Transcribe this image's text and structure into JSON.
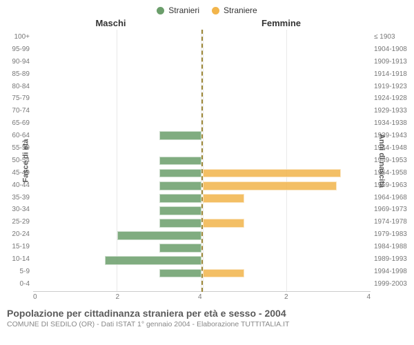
{
  "legend": {
    "male": {
      "label": "Stranieri",
      "color": "#6b9e6b"
    },
    "female": {
      "label": "Straniere",
      "color": "#f2b54b"
    }
  },
  "headers": {
    "left": "Maschi",
    "right": "Femmine"
  },
  "axis_titles": {
    "left": "Fasce di età",
    "right": "Anni di nascita"
  },
  "chart": {
    "type": "bar",
    "xmax": 4,
    "xticks": [
      0,
      2,
      4
    ],
    "background_color": "#ffffff",
    "grid_color": "#e9e9e9",
    "center_line_color": "#a08a3a",
    "bar_opacity": 0.85,
    "bar_fill_ratio": 0.7,
    "rows": [
      {
        "age": "100+",
        "birth": "≤ 1903",
        "m": 0,
        "f": 0
      },
      {
        "age": "95-99",
        "birth": "1904-1908",
        "m": 0,
        "f": 0
      },
      {
        "age": "90-94",
        "birth": "1909-1913",
        "m": 0,
        "f": 0
      },
      {
        "age": "85-89",
        "birth": "1914-1918",
        "m": 0,
        "f": 0
      },
      {
        "age": "80-84",
        "birth": "1919-1923",
        "m": 0,
        "f": 0
      },
      {
        "age": "75-79",
        "birth": "1924-1928",
        "m": 0,
        "f": 0
      },
      {
        "age": "70-74",
        "birth": "1929-1933",
        "m": 0,
        "f": 0
      },
      {
        "age": "65-69",
        "birth": "1934-1938",
        "m": 0,
        "f": 0
      },
      {
        "age": "60-64",
        "birth": "1939-1943",
        "m": 1,
        "f": 0
      },
      {
        "age": "55-59",
        "birth": "1944-1948",
        "m": 0,
        "f": 0
      },
      {
        "age": "50-54",
        "birth": "1949-1953",
        "m": 1,
        "f": 0
      },
      {
        "age": "45-49",
        "birth": "1954-1958",
        "m": 1,
        "f": 3.3
      },
      {
        "age": "40-44",
        "birth": "1959-1963",
        "m": 1,
        "f": 3.2
      },
      {
        "age": "35-39",
        "birth": "1964-1968",
        "m": 1,
        "f": 1
      },
      {
        "age": "30-34",
        "birth": "1969-1973",
        "m": 1,
        "f": 0
      },
      {
        "age": "25-29",
        "birth": "1974-1978",
        "m": 1,
        "f": 1
      },
      {
        "age": "20-24",
        "birth": "1979-1983",
        "m": 2,
        "f": 0
      },
      {
        "age": "15-19",
        "birth": "1984-1988",
        "m": 1,
        "f": 0
      },
      {
        "age": "10-14",
        "birth": "1989-1993",
        "m": 2.3,
        "f": 0
      },
      {
        "age": "5-9",
        "birth": "1994-1998",
        "m": 1,
        "f": 1
      },
      {
        "age": "0-4",
        "birth": "1999-2003",
        "m": 0,
        "f": 0
      }
    ]
  },
  "caption": {
    "title": "Popolazione per cittadinanza straniera per età e sesso - 2004",
    "subtitle": "COMUNE DI SEDILO (OR) - Dati ISTAT 1° gennaio 2004 - Elaborazione TUTTITALIA.IT"
  }
}
